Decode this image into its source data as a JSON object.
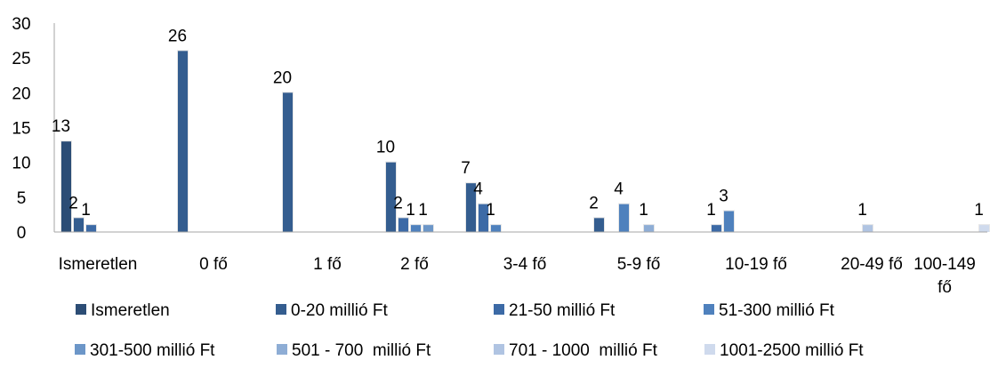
{
  "chart_data": {
    "type": "bar",
    "title": "",
    "xlabel": "",
    "ylabel": "",
    "ylim": [
      0,
      30
    ],
    "yticks": [
      0,
      5,
      10,
      15,
      20,
      25,
      30
    ],
    "grid": false,
    "legend_position": "bottom",
    "categories": [
      {
        "lines": [
          "Ismeretlen"
        ]
      },
      {
        "lines": [
          "0 fő"
        ]
      },
      {
        "lines": [
          "1 fő"
        ]
      },
      {
        "lines": [
          "2 fő"
        ]
      },
      {
        "lines": [
          "3-4 fő"
        ]
      },
      {
        "lines": [
          "5-9 fő"
        ]
      },
      {
        "lines": [
          "10-19 fő"
        ]
      },
      {
        "lines": [
          "20-49 fő"
        ]
      },
      {
        "lines": [
          "100-149",
          "fő"
        ]
      }
    ],
    "series": [
      {
        "name": "Ismeretlen",
        "color": "#2c4d75",
        "values": [
          13,
          null,
          null,
          null,
          null,
          null,
          null,
          null,
          null
        ]
      },
      {
        "name": "0-20 millió Ft",
        "color": "#345d8f",
        "values": [
          2,
          26,
          20,
          10,
          7,
          2,
          null,
          null,
          null
        ]
      },
      {
        "name": "21-50 millió Ft",
        "color": "#3c6aa6",
        "values": [
          1,
          null,
          null,
          2,
          4,
          null,
          1,
          null,
          null
        ]
      },
      {
        "name": "51-300 millió Ft",
        "color": "#4f81bd",
        "values": [
          null,
          null,
          null,
          1,
          1,
          4,
          3,
          null,
          null
        ]
      },
      {
        "name": "301-500 millió Ft",
        "color": "#6c96c8",
        "values": [
          null,
          null,
          null,
          1,
          null,
          null,
          null,
          null,
          null
        ]
      },
      {
        "name": "501 - 700  millió Ft",
        "color": "#8eadd5",
        "values": [
          null,
          null,
          null,
          null,
          null,
          1,
          null,
          null,
          null
        ]
      },
      {
        "name": "701 - 1000  millió Ft",
        "color": "#b0c4e2",
        "values": [
          null,
          null,
          null,
          null,
          null,
          null,
          null,
          1,
          null
        ]
      },
      {
        "name": "1001-2500 millió Ft",
        "color": "#cfdaed",
        "values": [
          null,
          null,
          null,
          null,
          null,
          null,
          null,
          null,
          1
        ]
      }
    ]
  }
}
